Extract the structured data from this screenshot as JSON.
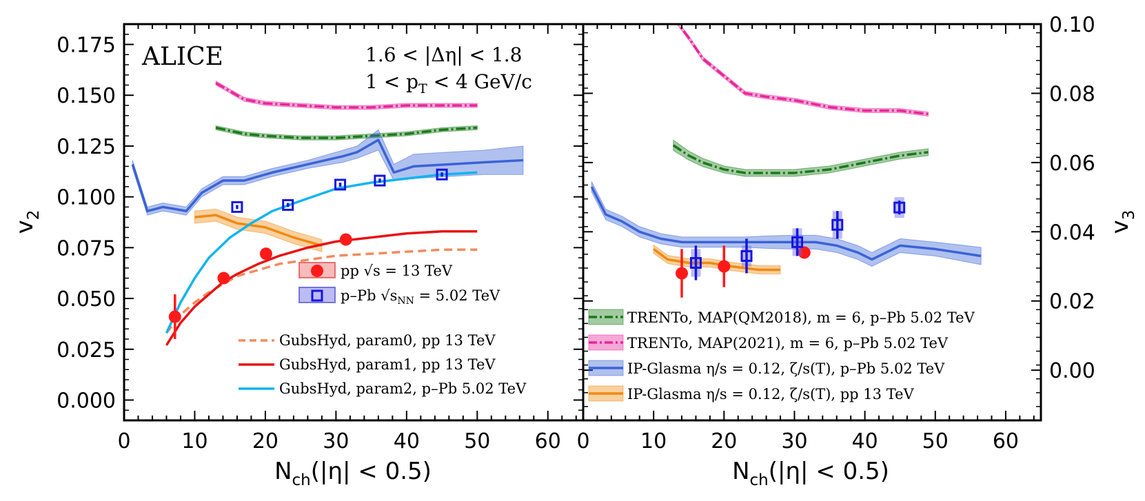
{
  "chart_data": [
    {
      "type": "line",
      "panel": "left",
      "experiment_label": "ALICE",
      "cuts": [
        "1.6 < |Δη| < 1.8",
        "1 < p_T < 4 GeV/c"
      ],
      "xlabel": "N_ch(|η| < 0.5)",
      "ylabel": "v_2",
      "xlim": [
        0,
        65
      ],
      "ylim": [
        -0.01,
        0.185
      ],
      "xticks": [
        "0",
        "10",
        "20",
        "30",
        "40",
        "50",
        "60"
      ],
      "yticks": [
        "0.000",
        "0.025",
        "0.050",
        "0.075",
        "0.100",
        "0.125",
        "0.150",
        "0.175"
      ],
      "legend_markers": [
        {
          "key": "pp",
          "label": "pp √s = 13 TeV"
        },
        {
          "key": "ppb",
          "label": "p–Pb √s_NN = 5.02 TeV"
        }
      ],
      "legend_models": [
        {
          "key": "gh0",
          "label": "GubsHyd, param0, pp 13 TeV"
        },
        {
          "key": "gh1",
          "label": "GubsHyd, param1, pp 13 TeV"
        },
        {
          "key": "gh2",
          "label": "GubsHyd, param2, p–Pb 5.02 TeV"
        }
      ],
      "data_points": [
        {
          "series": "pp √s = 13 TeV",
          "marker": "filled-circle",
          "color": "#ff1a1a",
          "x": [
            7.2,
            14.1,
            20.1,
            31.4
          ],
          "y": [
            0.041,
            0.06,
            0.072,
            0.079
          ],
          "err": [
            0.011,
            0.003,
            0.002,
            0.001
          ]
        },
        {
          "series": "p–Pb √s_NN = 5.02 TeV",
          "marker": "open-square",
          "color": "#1515e0",
          "x": [
            16.0,
            23.2,
            30.6,
            36.2,
            45.0
          ],
          "y": [
            0.095,
            0.096,
            0.106,
            0.108,
            0.111
          ],
          "err": [
            0.001,
            0.001,
            0.001,
            0.001,
            0.001
          ]
        }
      ],
      "models": [
        {
          "name": "TRENTo MAP(2021) p–Pb 5.02 TeV",
          "color": "#e8259a",
          "style": "dashdot",
          "x": [
            13,
            17,
            20,
            25,
            30,
            35,
            40,
            45,
            50
          ],
          "y": [
            0.156,
            0.148,
            0.146,
            0.145,
            0.144,
            0.144,
            0.145,
            0.145,
            0.145
          ],
          "band": 0.001
        },
        {
          "name": "TRENTo MAP(QM2018) p–Pb 5.02 TeV",
          "color": "#1a7a1a",
          "style": "dashdot",
          "x": [
            13,
            17,
            20,
            25,
            30,
            35,
            40,
            45,
            50
          ],
          "y": [
            0.134,
            0.131,
            0.13,
            0.129,
            0.129,
            0.13,
            0.131,
            0.133,
            0.134
          ],
          "band": 0.001
        },
        {
          "name": "IP-Glasma p–Pb 5.02 TeV",
          "color": "#3a63d6",
          "style": "solid",
          "x": [
            1.2,
            3.3,
            5.5,
            7.2,
            8.8,
            11,
            14,
            17,
            21,
            26,
            31,
            33,
            36,
            38.2,
            41,
            46,
            51,
            56.5
          ],
          "y": [
            0.116,
            0.093,
            0.095,
            0.094,
            0.093,
            0.102,
            0.108,
            0.108,
            0.112,
            0.116,
            0.12,
            0.122,
            0.128,
            0.112,
            0.115,
            0.116,
            0.117,
            0.118
          ],
          "band": [
            0.002,
            0.002,
            0.002,
            0.002,
            0.002,
            0.002,
            0.002,
            0.002,
            0.002,
            0.002,
            0.003,
            0.003,
            0.005,
            0.004,
            0.006,
            0.006,
            0.006,
            0.007
          ]
        },
        {
          "name": "IP-Glasma pp 13 TeV",
          "color": "#f08a10",
          "style": "solid",
          "x": [
            10,
            13,
            16,
            20,
            24,
            28
          ],
          "y": [
            0.09,
            0.091,
            0.087,
            0.085,
            0.08,
            0.076
          ],
          "band": 0.003
        },
        {
          "name": "GubsHyd, param0, pp 13 TeV",
          "color": "#f58a5c",
          "style": "dashed",
          "x": [
            6,
            8,
            10,
            12,
            14,
            16,
            19,
            22,
            26,
            30,
            35,
            40,
            45,
            50
          ],
          "y": [
            0.033,
            0.042,
            0.048,
            0.053,
            0.057,
            0.061,
            0.064,
            0.067,
            0.069,
            0.071,
            0.072,
            0.073,
            0.074,
            0.074
          ]
        },
        {
          "name": "GubsHyd, param1, pp 13 TeV",
          "color": "#e81212",
          "style": "solid",
          "x": [
            6,
            8,
            10,
            12,
            14,
            16,
            19,
            22,
            26,
            30,
            35,
            40,
            45,
            50
          ],
          "y": [
            0.027,
            0.038,
            0.046,
            0.052,
            0.058,
            0.062,
            0.067,
            0.071,
            0.075,
            0.078,
            0.08,
            0.082,
            0.083,
            0.083
          ]
        },
        {
          "name": "GubsHyd, param2, p–Pb 5.02 TeV",
          "color": "#11b4ef",
          "style": "solid",
          "x": [
            6,
            8,
            10,
            12,
            15,
            18,
            21,
            25,
            30,
            35,
            40,
            45,
            50
          ],
          "y": [
            0.033,
            0.048,
            0.06,
            0.07,
            0.08,
            0.087,
            0.093,
            0.098,
            0.104,
            0.107,
            0.109,
            0.111,
            0.112
          ]
        }
      ]
    },
    {
      "type": "line",
      "panel": "right",
      "xlabel": "N_ch(|η| < 0.5)",
      "ylabel": "v_3",
      "xlim": [
        0,
        65
      ],
      "ylim": [
        -0.0145,
        0.1
      ],
      "xticks": [
        "0",
        "10",
        "20",
        "30",
        "40",
        "50",
        "60"
      ],
      "yticks": [
        "0.00",
        "0.02",
        "0.04",
        "0.06",
        "0.08",
        "0.10"
      ],
      "legend_models": [
        {
          "key": "trqm",
          "label": "TRENTo, MAP(QM2018), m = 6, p–Pb 5.02 TeV"
        },
        {
          "key": "tr21",
          "label": "TRENTo, MAP(2021), m = 6, p–Pb 5.02 TeV"
        },
        {
          "key": "ipppb",
          "label": "IP-Glasma η/s = 0.12, ζ/s(T), p–Pb 5.02 TeV"
        },
        {
          "key": "ippp",
          "label": "IP-Glasma η/s = 0.12, ζ/s(T), pp 13 TeV"
        }
      ],
      "data_points": [
        {
          "series": "pp √s = 13 TeV",
          "marker": "filled-circle",
          "color": "#ff1a1a",
          "x": [
            14.0,
            20.0,
            31.4
          ],
          "y": [
            0.028,
            0.03,
            0.034
          ],
          "err": [
            0.007,
            0.006,
            0.001
          ]
        },
        {
          "series": "p–Pb √s_NN = 5.02 TeV",
          "marker": "open-square",
          "color": "#1515e0",
          "x": [
            16.0,
            23.2,
            30.4,
            36.1,
            44.9
          ],
          "y": [
            0.031,
            0.033,
            0.037,
            0.042,
            0.047
          ],
          "err": [
            0.005,
            0.005,
            0.004,
            0.004,
            0.002
          ],
          "sys": [
            0.004,
            0.003,
            0.004,
            0.004,
            0.003
          ]
        }
      ],
      "models": [
        {
          "name": "TRENTo MAP(2021) p–Pb 5.02 TeV",
          "color": "#e8259a",
          "style": "dashdot",
          "x": [
            12.8,
            15,
            17,
            20,
            23,
            26,
            30,
            35,
            40,
            45,
            49
          ],
          "y": [
            0.102,
            0.096,
            0.09,
            0.085,
            0.08,
            0.079,
            0.078,
            0.076,
            0.075,
            0.075,
            0.074
          ],
          "band": 0.0006
        },
        {
          "name": "TRENTo MAP(QM2018) p–Pb 5.02 TeV",
          "color": "#1a7a1a",
          "style": "dashdot",
          "x": [
            12.8,
            15,
            17,
            20,
            23,
            26,
            30,
            35,
            40,
            45,
            49
          ],
          "y": [
            0.065,
            0.062,
            0.06,
            0.058,
            0.057,
            0.057,
            0.057,
            0.058,
            0.06,
            0.062,
            0.063
          ],
          "band": [
            0.0015,
            0.0013,
            0.0012,
            0.001,
            0.001,
            0.001,
            0.001,
            0.001,
            0.001,
            0.001,
            0.001
          ]
        },
        {
          "name": "IP-Glasma p–Pb 5.02 TeV",
          "color": "#3a63d6",
          "style": "solid",
          "x": [
            1.2,
            3.2,
            5.5,
            8,
            11,
            14,
            17,
            20,
            23,
            26,
            30,
            33,
            36,
            39,
            41,
            45,
            50,
            56.5
          ],
          "y": [
            0.053,
            0.045,
            0.043,
            0.04,
            0.038,
            0.037,
            0.037,
            0.037,
            0.037,
            0.037,
            0.037,
            0.037,
            0.036,
            0.034,
            0.032,
            0.036,
            0.035,
            0.033
          ],
          "band": [
            0.0015,
            0.0015,
            0.0015,
            0.0015,
            0.0015,
            0.0015,
            0.0015,
            0.0015,
            0.0015,
            0.0018,
            0.002,
            0.002,
            0.002,
            0.002,
            0.002,
            0.002,
            0.002,
            0.0025
          ]
        },
        {
          "name": "IP-Glasma pp 13 TeV",
          "color": "#f08a10",
          "style": "solid",
          "x": [
            10,
            12,
            15,
            18,
            21,
            25,
            28
          ],
          "y": [
            0.035,
            0.032,
            0.031,
            0.031,
            0.03,
            0.029,
            0.029
          ],
          "band": 0.0012
        }
      ]
    }
  ]
}
